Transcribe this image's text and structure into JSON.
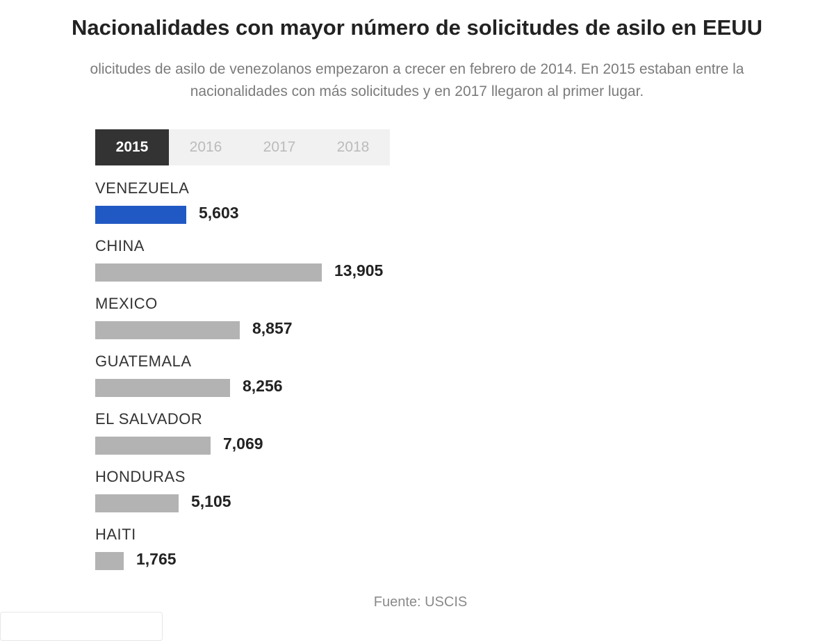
{
  "header": {
    "title": "Nacionalidades con mayor número de solicitudes de asilo en EEUU",
    "subtitle_line1": "olicitudes de asilo de venezolanos empezaron a crecer en febrero de 2014. En 2015 estaban entre la",
    "subtitle_line2": "nacionalidades con más solicitudes y en 2017 llegaron al primer lugar."
  },
  "tabs": [
    {
      "label": "2015",
      "active": true
    },
    {
      "label": "2016",
      "active": false
    },
    {
      "label": "2017",
      "active": false
    },
    {
      "label": "2018",
      "active": false
    }
  ],
  "footer": {
    "source": "Fuente: USCIS"
  },
  "colors": {
    "highlight": "#2159c4",
    "bar": "#b3b3b3",
    "active_tab": "#333333"
  },
  "chart_data": {
    "type": "bar",
    "orientation": "horizontal",
    "year": "2015",
    "categories": [
      "VENEZUELA",
      "CHINA",
      "MEXICO",
      "GUATEMALA",
      "EL SALVADOR",
      "HONDURAS",
      "HAITI"
    ],
    "values": [
      5603,
      13905,
      8857,
      8256,
      7069,
      5105,
      1765
    ],
    "value_labels": [
      "5,603",
      "13,905",
      "8,857",
      "8,256",
      "7,069",
      "5,105",
      "1,765"
    ],
    "highlight": "VENEZUELA",
    "grid": false,
    "legend": "none"
  }
}
